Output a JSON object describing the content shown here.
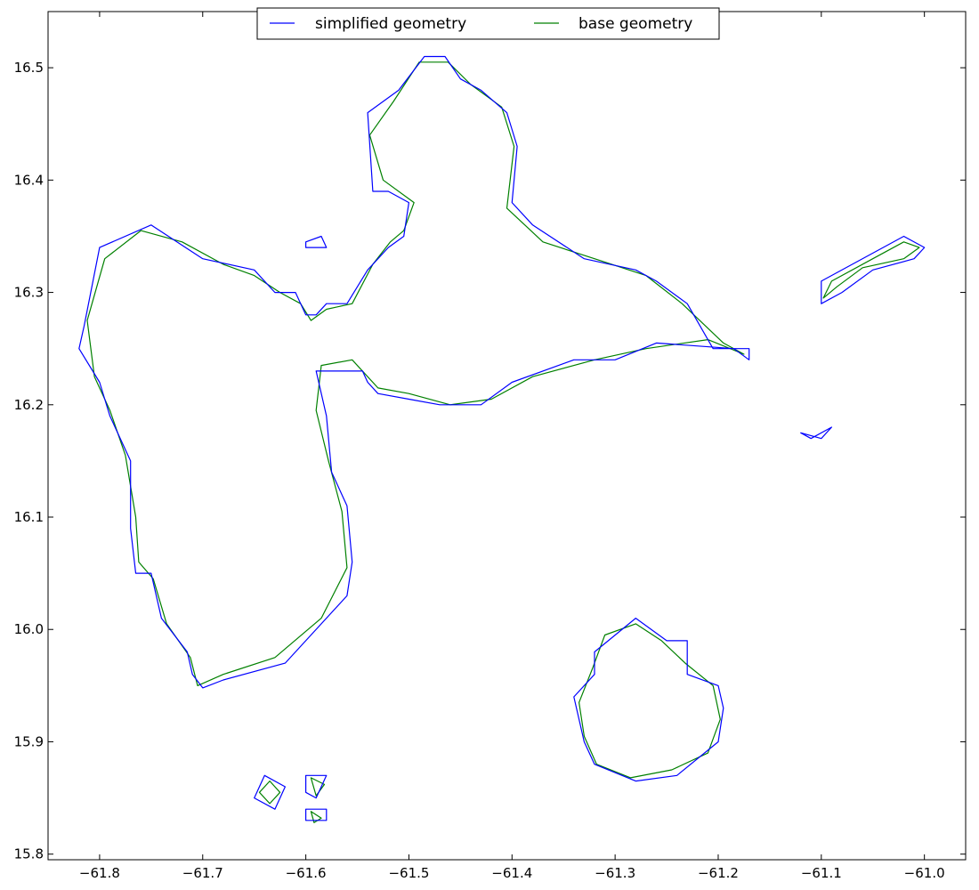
{
  "chart_data": {
    "type": "line",
    "title": "",
    "xlabel": "",
    "ylabel": "",
    "xlim": [
      -61.85,
      -60.96
    ],
    "ylim": [
      15.795,
      16.55
    ],
    "xticks": [
      -61.8,
      -61.7,
      -61.6,
      -61.5,
      -61.4,
      -61.3,
      -61.2,
      -61.1,
      -61.0
    ],
    "xtick_labels": [
      "−61.8",
      "−61.7",
      "−61.6",
      "−61.5",
      "−61.4",
      "−61.3",
      "−61.2",
      "−61.1",
      "−61.0"
    ],
    "yticks": [
      15.8,
      15.9,
      16.0,
      16.1,
      16.2,
      16.3,
      16.4,
      16.5
    ],
    "ytick_labels": [
      "15.8",
      "15.9",
      "16.0",
      "16.1",
      "16.2",
      "16.3",
      "16.4",
      "16.5"
    ],
    "grid": false,
    "legend_position": "top-center",
    "series": [
      {
        "name": "simplified geometry",
        "color": "#0000ff",
        "polygons": [
          [
            [
              -61.815,
              16.27
            ],
            [
              -61.8,
              16.34
            ],
            [
              -61.75,
              16.36
            ],
            [
              -61.7,
              16.33
            ],
            [
              -61.65,
              16.32
            ],
            [
              -61.63,
              16.3
            ],
            [
              -61.61,
              16.3
            ],
            [
              -61.6,
              16.28
            ],
            [
              -61.59,
              16.28
            ],
            [
              -61.58,
              16.29
            ],
            [
              -61.56,
              16.29
            ],
            [
              -61.54,
              16.32
            ],
            [
              -61.52,
              16.34
            ],
            [
              -61.505,
              16.35
            ],
            [
              -61.5,
              16.38
            ],
            [
              -61.52,
              16.39
            ],
            [
              -61.535,
              16.39
            ],
            [
              -61.54,
              16.46
            ],
            [
              -61.51,
              16.48
            ],
            [
              -61.485,
              16.51
            ],
            [
              -61.465,
              16.51
            ],
            [
              -61.45,
              16.49
            ],
            [
              -61.43,
              16.48
            ],
            [
              -61.405,
              16.46
            ],
            [
              -61.395,
              16.43
            ],
            [
              -61.4,
              16.38
            ],
            [
              -61.38,
              16.36
            ],
            [
              -61.33,
              16.33
            ],
            [
              -61.28,
              16.32
            ],
            [
              -61.26,
              16.31
            ],
            [
              -61.23,
              16.29
            ],
            [
              -61.205,
              16.25
            ],
            [
              -61.17,
              16.25
            ],
            [
              -61.17,
              16.24
            ],
            [
              -61.185,
              16.25
            ],
            [
              -61.26,
              16.255
            ],
            [
              -61.3,
              16.24
            ],
            [
              -61.34,
              16.24
            ],
            [
              -61.4,
              16.22
            ],
            [
              -61.43,
              16.2
            ],
            [
              -61.455,
              16.2
            ],
            [
              -61.47,
              16.2
            ],
            [
              -61.5,
              16.205
            ],
            [
              -61.53,
              16.21
            ],
            [
              -61.54,
              16.22
            ],
            [
              -61.545,
              16.23
            ],
            [
              -61.59,
              16.23
            ],
            [
              -61.58,
              16.19
            ],
            [
              -61.575,
              16.14
            ],
            [
              -61.56,
              16.11
            ],
            [
              -61.555,
              16.06
            ],
            [
              -61.56,
              16.03
            ],
            [
              -61.62,
              15.97
            ],
            [
              -61.68,
              15.955
            ],
            [
              -61.7,
              15.948
            ],
            [
              -61.71,
              15.96
            ],
            [
              -61.715,
              15.98
            ],
            [
              -61.74,
              16.01
            ],
            [
              -61.75,
              16.05
            ],
            [
              -61.765,
              16.05
            ],
            [
              -61.77,
              16.09
            ],
            [
              -61.77,
              16.15
            ],
            [
              -61.79,
              16.19
            ],
            [
              -61.8,
              16.22
            ],
            [
              -61.82,
              16.25
            ]
          ],
          [
            [
              -61.34,
              15.94
            ],
            [
              -61.32,
              15.96
            ],
            [
              -61.32,
              15.98
            ],
            [
              -61.28,
              16.01
            ],
            [
              -61.25,
              15.99
            ],
            [
              -61.23,
              15.99
            ],
            [
              -61.23,
              15.96
            ],
            [
              -61.2,
              15.95
            ],
            [
              -61.195,
              15.93
            ],
            [
              -61.2,
              15.9
            ],
            [
              -61.24,
              15.87
            ],
            [
              -61.28,
              15.865
            ],
            [
              -61.32,
              15.88
            ],
            [
              -61.33,
              15.9
            ]
          ],
          [
            [
              -61.1,
              16.29
            ],
            [
              -61.1,
              16.31
            ],
            [
              -61.02,
              16.35
            ],
            [
              -61.0,
              16.34
            ],
            [
              -61.01,
              16.33
            ],
            [
              -61.05,
              16.32
            ],
            [
              -61.08,
              16.3
            ]
          ],
          [
            [
              -61.12,
              16.175
            ],
            [
              -61.1,
              16.17
            ],
            [
              -61.09,
              16.18
            ],
            [
              -61.11,
              16.17
            ]
          ],
          [
            [
              -61.65,
              15.85
            ],
            [
              -61.64,
              15.87
            ],
            [
              -61.62,
              15.86
            ],
            [
              -61.63,
              15.84
            ]
          ],
          [
            [
              -61.6,
              15.87
            ],
            [
              -61.58,
              15.87
            ],
            [
              -61.59,
              15.85
            ],
            [
              -61.6,
              15.855
            ]
          ],
          [
            [
              -61.6,
              15.84
            ],
            [
              -61.58,
              15.84
            ],
            [
              -61.58,
              15.83
            ],
            [
              -61.6,
              15.83
            ]
          ],
          [
            [
              -61.6,
              16.345
            ],
            [
              -61.585,
              16.35
            ],
            [
              -61.58,
              16.34
            ],
            [
              -61.6,
              16.34
            ]
          ]
        ]
      },
      {
        "name": "base geometry",
        "color": "#008000",
        "polygons": [
          [
            [
              -61.812,
              16.275
            ],
            [
              -61.795,
              16.33
            ],
            [
              -61.76,
              16.355
            ],
            [
              -61.72,
              16.345
            ],
            [
              -61.68,
              16.325
            ],
            [
              -61.65,
              16.315
            ],
            [
              -61.625,
              16.3
            ],
            [
              -61.605,
              16.29
            ],
            [
              -61.595,
              16.275
            ],
            [
              -61.58,
              16.285
            ],
            [
              -61.555,
              16.29
            ],
            [
              -61.535,
              16.325
            ],
            [
              -61.518,
              16.345
            ],
            [
              -61.505,
              16.355
            ],
            [
              -61.495,
              16.38
            ],
            [
              -61.525,
              16.4
            ],
            [
              -61.538,
              16.44
            ],
            [
              -61.515,
              16.47
            ],
            [
              -61.49,
              16.505
            ],
            [
              -61.462,
              16.505
            ],
            [
              -61.44,
              16.485
            ],
            [
              -61.41,
              16.465
            ],
            [
              -61.398,
              16.43
            ],
            [
              -61.405,
              16.375
            ],
            [
              -61.37,
              16.345
            ],
            [
              -61.32,
              16.33
            ],
            [
              -61.27,
              16.315
            ],
            [
              -61.235,
              16.29
            ],
            [
              -61.195,
              16.255
            ],
            [
              -61.175,
              16.245
            ],
            [
              -61.21,
              16.258
            ],
            [
              -61.27,
              16.25
            ],
            [
              -61.32,
              16.24
            ],
            [
              -61.38,
              16.225
            ],
            [
              -61.42,
              16.205
            ],
            [
              -61.46,
              16.2
            ],
            [
              -61.5,
              16.21
            ],
            [
              -61.53,
              16.215
            ],
            [
              -61.555,
              16.24
            ],
            [
              -61.585,
              16.235
            ],
            [
              -61.59,
              16.195
            ],
            [
              -61.578,
              16.15
            ],
            [
              -61.565,
              16.105
            ],
            [
              -61.56,
              16.055
            ],
            [
              -61.585,
              16.01
            ],
            [
              -61.63,
              15.975
            ],
            [
              -61.68,
              15.96
            ],
            [
              -61.705,
              15.95
            ],
            [
              -61.712,
              15.975
            ],
            [
              -61.735,
              16.005
            ],
            [
              -61.748,
              16.045
            ],
            [
              -61.762,
              16.06
            ],
            [
              -61.765,
              16.1
            ],
            [
              -61.775,
              16.155
            ],
            [
              -61.79,
              16.195
            ],
            [
              -61.805,
              16.225
            ]
          ],
          [
            [
              -61.335,
              15.935
            ],
            [
              -61.322,
              15.965
            ],
            [
              -61.31,
              15.995
            ],
            [
              -61.28,
              16.005
            ],
            [
              -61.255,
              15.99
            ],
            [
              -61.232,
              15.97
            ],
            [
              -61.205,
              15.95
            ],
            [
              -61.198,
              15.92
            ],
            [
              -61.21,
              15.89
            ],
            [
              -61.245,
              15.875
            ],
            [
              -61.285,
              15.868
            ],
            [
              -61.318,
              15.88
            ],
            [
              -61.33,
              15.905
            ]
          ],
          [
            [
              -61.098,
              16.295
            ],
            [
              -61.09,
              16.31
            ],
            [
              -61.05,
              16.33
            ],
            [
              -61.02,
              16.345
            ],
            [
              -61.005,
              16.34
            ],
            [
              -61.02,
              16.33
            ],
            [
              -61.06,
              16.322
            ],
            [
              -61.085,
              16.305
            ]
          ],
          [
            [
              -61.645,
              15.855
            ],
            [
              -61.635,
              15.865
            ],
            [
              -61.625,
              15.855
            ],
            [
              -61.635,
              15.845
            ]
          ],
          [
            [
              -61.595,
              15.868
            ],
            [
              -61.582,
              15.862
            ],
            [
              -61.59,
              15.852
            ]
          ],
          [
            [
              -61.595,
              15.838
            ],
            [
              -61.585,
              15.832
            ],
            [
              -61.592,
              15.828
            ]
          ]
        ]
      }
    ]
  }
}
